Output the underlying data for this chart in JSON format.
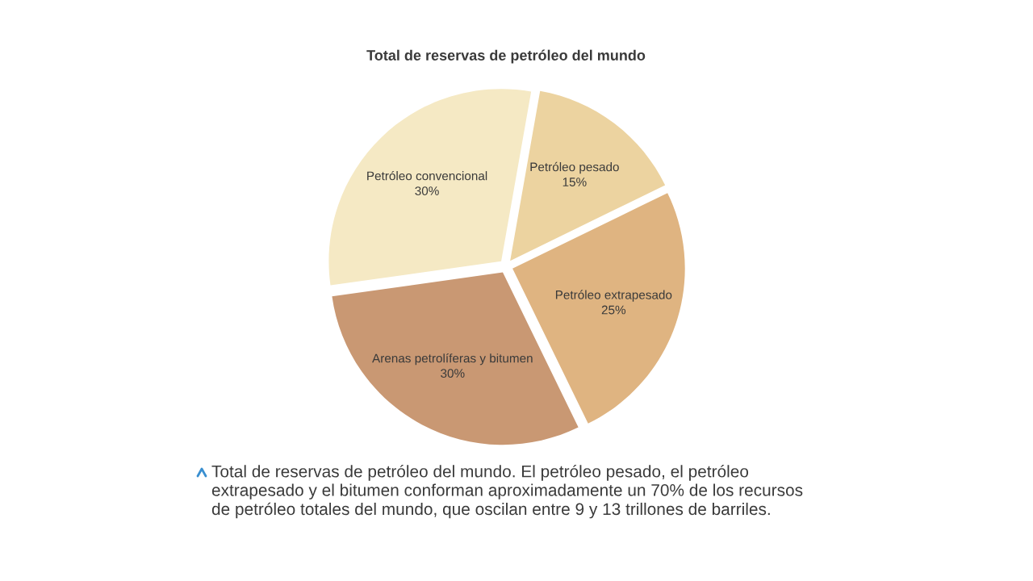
{
  "chart_data": {
    "type": "pie",
    "title": "Total de reservas de petróleo del mundo",
    "categories": [
      "Petróleo convencional",
      "Petróleo pesado",
      "Petróleo extrapesado",
      "Arenas petrolíferas y bitumen"
    ],
    "values": [
      30,
      15,
      25,
      30
    ],
    "colors": [
      "#f5e9c4",
      "#ecd3a0",
      "#dfb481",
      "#c99873"
    ],
    "value_labels": [
      "30%",
      "15%",
      "25%",
      "30%"
    ],
    "annotations": [
      "Total de reservas de petróleo del mundo. El petróleo pesado, el petróleo extrapesado y el bitumen conforman aproximadamente un 70% de los recursos de petróleo totales del mundo, que oscilan entre 9 y 13 trillones de barriles."
    ]
  }
}
